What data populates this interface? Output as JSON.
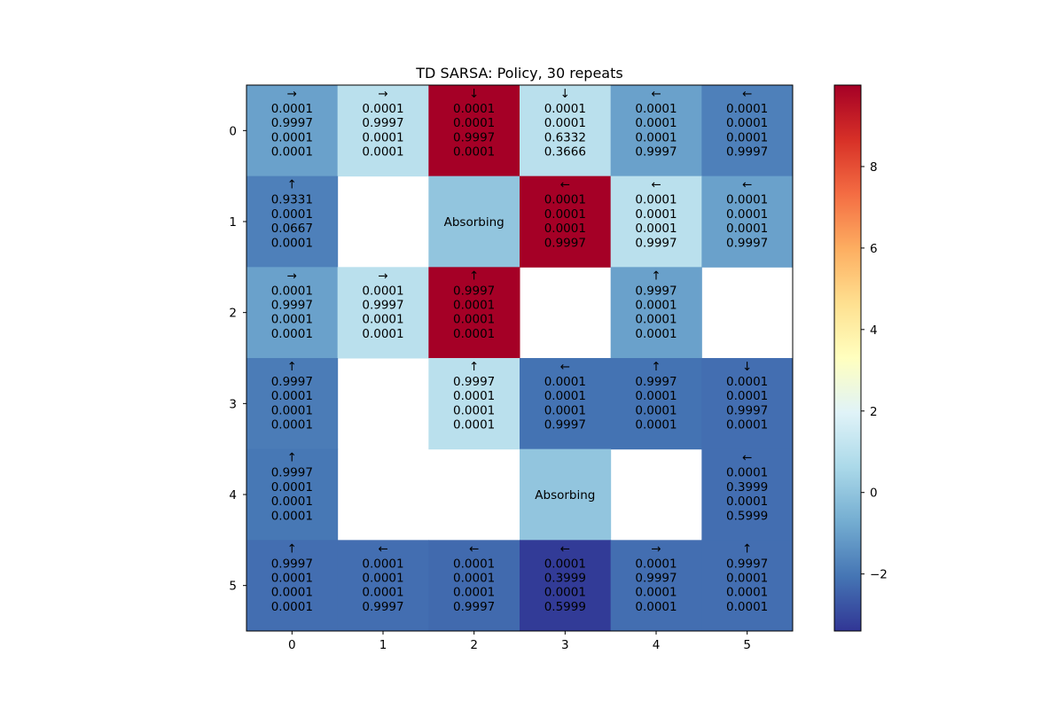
{
  "chart_data": {
    "type": "heatmap",
    "title": "TD SARSA: Policy, 30 repeats",
    "xlabel": "",
    "ylabel": "",
    "x_ticks": [
      "0",
      "1",
      "2",
      "3",
      "4",
      "5"
    ],
    "y_ticks": [
      "0",
      "1",
      "2",
      "3",
      "4",
      "5"
    ],
    "colormap": "RdYlBu_r",
    "color_range": [
      -3.4,
      10.0
    ],
    "colorbar_ticks": [
      "−2",
      "0",
      "2",
      "4",
      "6",
      "8"
    ],
    "colorbar_tick_values": [
      -2,
      0,
      2,
      4,
      6,
      8
    ],
    "absorbing_label": "Absorbing",
    "cells": [
      [
        {
          "arrow": "→",
          "probs": [
            "0.0001",
            "0.9997",
            "0.0001",
            "0.0001"
          ],
          "value": -1.0
        },
        {
          "arrow": "→",
          "probs": [
            "0.0001",
            "0.9997",
            "0.0001",
            "0.0001"
          ],
          "value": 1.0
        },
        {
          "arrow": "↓",
          "probs": [
            "0.0001",
            "0.0001",
            "0.9997",
            "0.0001"
          ],
          "value": 10.0
        },
        {
          "arrow": "↓",
          "probs": [
            "0.0001",
            "0.0001",
            "0.6332",
            "0.3666"
          ],
          "value": 1.0
        },
        {
          "arrow": "←",
          "probs": [
            "0.0001",
            "0.0001",
            "0.0001",
            "0.9997"
          ],
          "value": -1.0
        },
        {
          "arrow": "←",
          "probs": [
            "0.0001",
            "0.0001",
            "0.0001",
            "0.9997"
          ],
          "value": -1.8
        }
      ],
      [
        {
          "arrow": "↑",
          "probs": [
            "0.9331",
            "0.0001",
            "0.0667",
            "0.0001"
          ],
          "value": -1.8
        },
        null,
        {
          "absorbing": true,
          "value": 0.0
        },
        {
          "arrow": "←",
          "probs": [
            "0.0001",
            "0.0001",
            "0.0001",
            "0.9997"
          ],
          "value": 10.0
        },
        {
          "arrow": "←",
          "probs": [
            "0.0001",
            "0.0001",
            "0.0001",
            "0.9997"
          ],
          "value": 1.0
        },
        {
          "arrow": "←",
          "probs": [
            "0.0001",
            "0.0001",
            "0.0001",
            "0.9997"
          ],
          "value": -1.0
        }
      ],
      [
        {
          "arrow": "→",
          "probs": [
            "0.0001",
            "0.9997",
            "0.0001",
            "0.0001"
          ],
          "value": -1.0
        },
        {
          "arrow": "→",
          "probs": [
            "0.0001",
            "0.9997",
            "0.0001",
            "0.0001"
          ],
          "value": 1.0
        },
        {
          "arrow": "↑",
          "probs": [
            "0.9997",
            "0.0001",
            "0.0001",
            "0.0001"
          ],
          "value": 10.0
        },
        null,
        {
          "arrow": "↑",
          "probs": [
            "0.9997",
            "0.0001",
            "0.0001",
            "0.0001"
          ],
          "value": -1.0
        },
        null
      ],
      [
        {
          "arrow": "↑",
          "probs": [
            "0.9997",
            "0.0001",
            "0.0001",
            "0.0001"
          ],
          "value": -1.9
        },
        null,
        {
          "arrow": "↑",
          "probs": [
            "0.9997",
            "0.0001",
            "0.0001",
            "0.0001"
          ],
          "value": 1.0
        },
        {
          "arrow": "←",
          "probs": [
            "0.0001",
            "0.0001",
            "0.0001",
            "0.9997"
          ],
          "value": -2.1
        },
        {
          "arrow": "↑",
          "probs": [
            "0.9997",
            "0.0001",
            "0.0001",
            "0.0001"
          ],
          "value": -2.1
        },
        {
          "arrow": "↓",
          "probs": [
            "0.0001",
            "0.0001",
            "0.9997",
            "0.0001"
          ],
          "value": -2.2
        }
      ],
      [
        {
          "arrow": "↑",
          "probs": [
            "0.9997",
            "0.0001",
            "0.0001",
            "0.0001"
          ],
          "value": -2.0
        },
        null,
        null,
        {
          "absorbing": true,
          "value": 0.0
        },
        null,
        {
          "arrow": "←",
          "probs": [
            "0.0001",
            "0.3999",
            "0.0001",
            "0.5999"
          ],
          "value": -2.2
        }
      ],
      [
        {
          "arrow": "↑",
          "probs": [
            "0.9997",
            "0.0001",
            "0.0001",
            "0.0001"
          ],
          "value": -2.2
        },
        {
          "arrow": "←",
          "probs": [
            "0.0001",
            "0.0001",
            "0.0001",
            "0.9997"
          ],
          "value": -2.2
        },
        {
          "arrow": "←",
          "probs": [
            "0.0001",
            "0.0001",
            "0.0001",
            "0.9997"
          ],
          "value": -2.3
        },
        {
          "arrow": "←",
          "probs": [
            "0.0001",
            "0.3999",
            "0.0001",
            "0.5999"
          ],
          "value": -3.3
        },
        {
          "arrow": "→",
          "probs": [
            "0.0001",
            "0.9997",
            "0.0001",
            "0.0001"
          ],
          "value": -2.2
        },
        {
          "arrow": "↑",
          "probs": [
            "0.9997",
            "0.0001",
            "0.0001",
            "0.0001"
          ],
          "value": -2.2
        }
      ]
    ]
  }
}
